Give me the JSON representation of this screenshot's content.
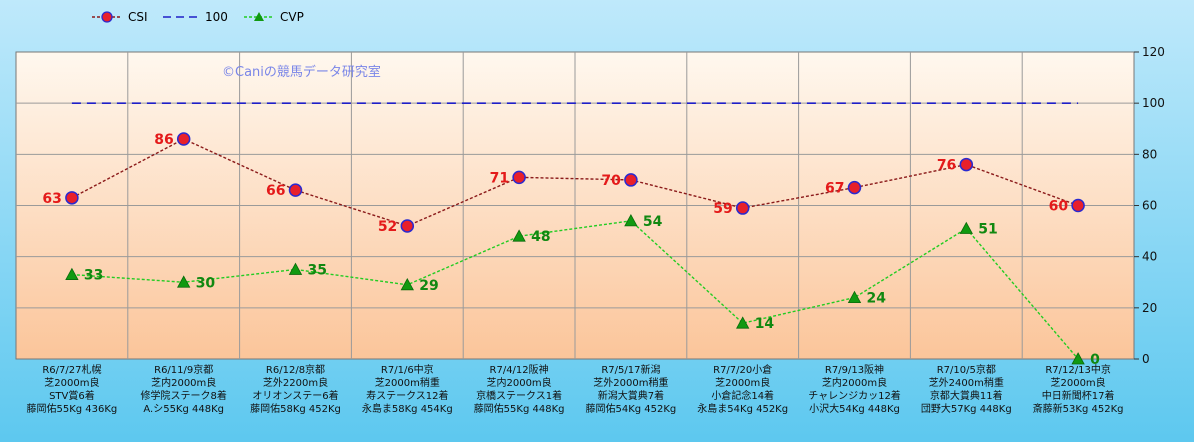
{
  "chart_data": {
    "type": "line",
    "watermark": "©Caniの競馬データ研究室",
    "ylim": [
      0,
      120
    ],
    "yticks": [
      0,
      20,
      40,
      60,
      80,
      100,
      120
    ],
    "categories": [
      [
        "R6/7/27札幌",
        "芝2000m良",
        "STV賞6着",
        "藤岡佑55Kg 436Kg"
      ],
      [
        "R6/11/9京都",
        "芝内2000m良",
        "修学院ステーク8着",
        "A.シ55Kg 448Kg"
      ],
      [
        "R6/12/8京都",
        "芝外2200m良",
        "オリオンステー6着",
        "藤岡佑58Kg 452Kg"
      ],
      [
        "R7/1/6中京",
        "芝2000m稍重",
        "寿ステークス12着",
        "永島ま58Kg 454Kg"
      ],
      [
        "R7/4/12阪神",
        "芝内2000m良",
        "京橋ステークス1着",
        "藤岡佑55Kg 448Kg"
      ],
      [
        "R7/5/17新潟",
        "芝外2000m稍重",
        "新潟大賞典7着",
        "藤岡佑54Kg 452Kg"
      ],
      [
        "R7/7/20小倉",
        "芝2000m良",
        "小倉記念14着",
        "永島ま54Kg 452Kg"
      ],
      [
        "R7/9/13阪神",
        "芝内2000m良",
        "チャレンジカッ12着",
        "小沢大54Kg 448Kg"
      ],
      [
        "R7/10/5京都",
        "芝外2400m稍重",
        "京都大賞典11着",
        "団野大57Kg 448Kg"
      ],
      [
        "R7/12/13中京",
        "芝2000m良",
        "中日新聞杯17着",
        "斎藤新53Kg 452Kg"
      ]
    ],
    "series": [
      {
        "name": "CSI",
        "values": [
          63,
          86,
          66,
          52,
          71,
          70,
          59,
          67,
          76,
          60
        ],
        "color": "#8b1a1a",
        "marker_fill": "#e8202a",
        "marker_stroke": "#2a2ad0"
      },
      {
        "name": "100",
        "values": [
          100,
          100,
          100,
          100,
          100,
          100,
          100,
          100,
          100,
          100
        ],
        "color": "#1f1fc8"
      },
      {
        "name": "CVP",
        "values": [
          33,
          30,
          35,
          29,
          48,
          54,
          14,
          24,
          51,
          0
        ],
        "color": "#22cc22",
        "marker_fill": "#119911"
      }
    ],
    "legend_position": "top-left",
    "grid": true
  }
}
